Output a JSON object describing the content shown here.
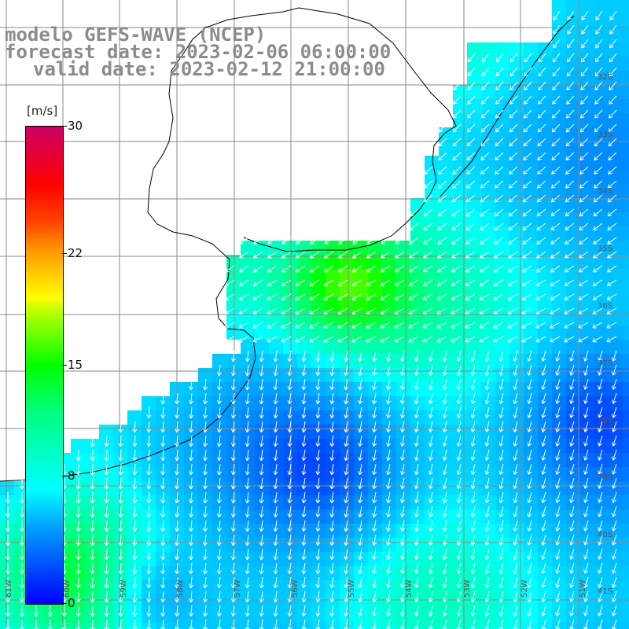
{
  "title_lines": [
    "modelo GEFS-WAVE (NCEP)",
    "forecast date: 2023-02-06 06:00:00",
    "valid date: 2023-02-12 21:00:00"
  ],
  "colorbar": {
    "units": "[m/s]",
    "ticks": [
      {
        "value": 30,
        "label": "30"
      },
      {
        "value": 22,
        "label": "22"
      },
      {
        "value": 15,
        "label": "15"
      },
      {
        "value": 8,
        "label": "8"
      },
      {
        "value": 0,
        "label": "0"
      }
    ],
    "range": [
      0,
      30
    ]
  },
  "latitude_labels": [
    "32S",
    "33S",
    "34S",
    "35S",
    "36S",
    "37S",
    "38S",
    "39S",
    "40S",
    "41S"
  ],
  "longitude_labels": [
    "61W",
    "60W",
    "59W",
    "58W",
    "57W",
    "56W",
    "55W",
    "54W",
    "53W",
    "52W",
    "51W"
  ],
  "colors": {
    "land": "#ffffff",
    "grid": "#888888",
    "coast": "#000000",
    "arrow": "#ffffff",
    "title": "#8c8c8c"
  }
}
